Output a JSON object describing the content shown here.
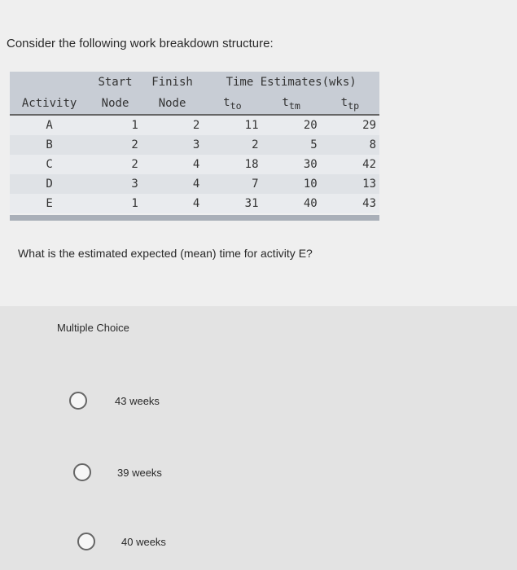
{
  "prompt": "Consider the following work breakdown structure:",
  "table": {
    "header_top": [
      "",
      "Start",
      "Finish",
      "Time Estimates(wks)"
    ],
    "header": [
      "Activity",
      "Node",
      "Node",
      "to",
      "tm",
      "tp"
    ],
    "rows": [
      [
        "A",
        "1",
        "2",
        "11",
        "20",
        "29"
      ],
      [
        "B",
        "2",
        "3",
        "2",
        "5",
        "8"
      ],
      [
        "C",
        "2",
        "4",
        "18",
        "30",
        "42"
      ],
      [
        "D",
        "3",
        "4",
        "7",
        "10",
        "13"
      ],
      [
        "E",
        "1",
        "4",
        "31",
        "40",
        "43"
      ]
    ]
  },
  "question": "What is the estimated expected (mean) time for activity E?",
  "multiple_choice_label": "Multiple Choice",
  "options": [
    {
      "label": "43 weeks"
    },
    {
      "label": "39 weeks"
    },
    {
      "label": "40 weeks"
    }
  ]
}
